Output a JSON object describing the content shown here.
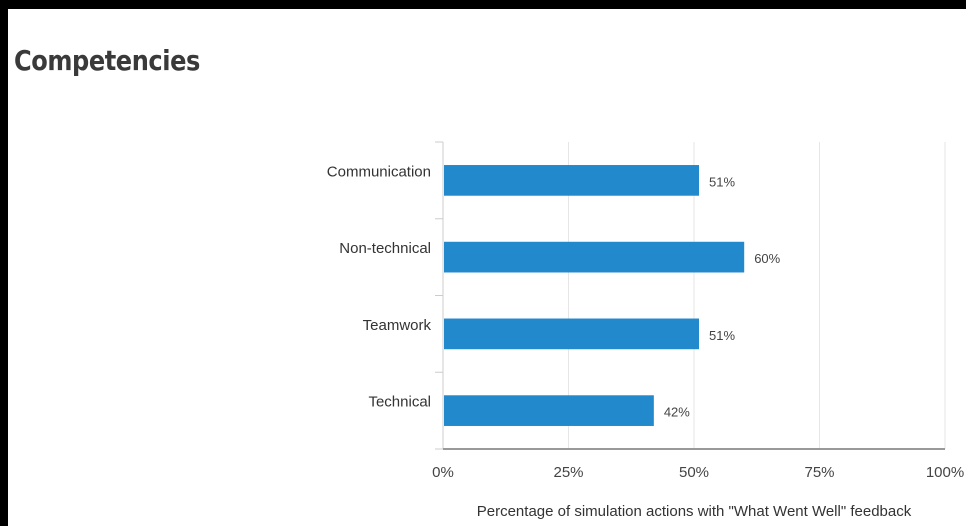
{
  "title": "Competencies",
  "chart_data": {
    "type": "bar",
    "orientation": "horizontal",
    "categories": [
      "Communication",
      "Non-technical",
      "Teamwork",
      "Technical"
    ],
    "values": [
      51,
      60,
      51,
      42
    ],
    "data_labels": [
      "51%",
      "60%",
      "51%",
      "42%"
    ],
    "xlabel": "Percentage of simulation actions with \"What Went Well\" feedback",
    "ylabel": "",
    "xlim": [
      0,
      100
    ],
    "ticks": [
      0,
      25,
      50,
      75,
      100
    ],
    "tick_labels": [
      "0%",
      "25%",
      "50%",
      "75%",
      "100%"
    ],
    "grid": true,
    "legend": "none",
    "bar_color": "#2389cd",
    "grid_color": "#e6e6e6",
    "axis_color": "#999999"
  }
}
